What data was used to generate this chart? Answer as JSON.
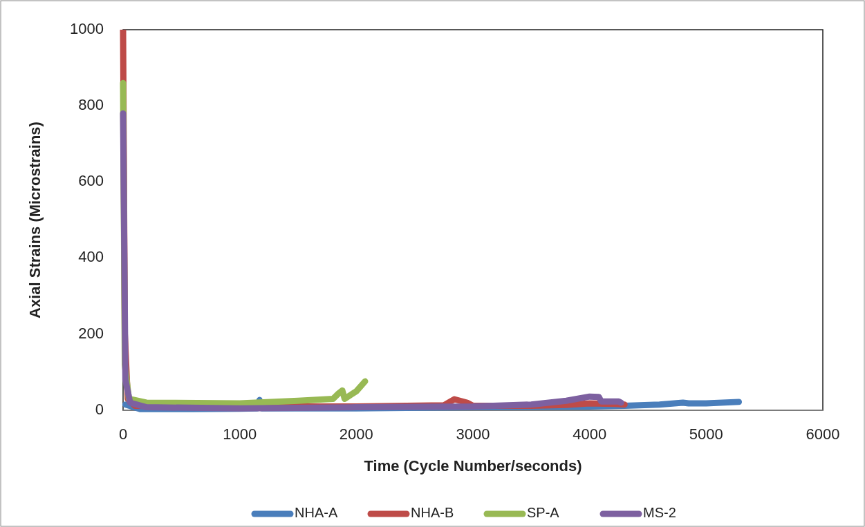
{
  "chart_data": {
    "type": "line",
    "xlabel": "Time (Cycle Number/seconds)",
    "ylabel": "Axial Strains (Microstrains)",
    "xlim": [
      0,
      6000
    ],
    "xticks": [
      0,
      1000,
      2000,
      3000,
      4000,
      5000,
      6000
    ],
    "ylim": [
      0,
      1000
    ],
    "yticks": [
      0,
      200,
      400,
      600,
      800,
      1000
    ],
    "grid": false,
    "legend": "bottom",
    "marker": "none",
    "line_style": "solid",
    "series": [
      {
        "name": "NHA-A",
        "color": "#4a7ebb",
        "x": [
          20,
          150,
          600,
          1000,
          1150,
          1170,
          1190,
          2000,
          3000,
          4000,
          4300,
          4600,
          4800,
          4850,
          5000,
          5280
        ],
        "values": [
          15,
          3,
          3,
          4,
          5,
          27,
          5,
          5,
          8,
          10,
          12,
          15,
          20,
          18,
          18,
          22
        ]
      },
      {
        "name": "NHA-B",
        "color": "#be4b48",
        "x": [
          0,
          15,
          40,
          100,
          500,
          1000,
          2000,
          2750,
          2840,
          2950,
          3000,
          3500,
          3800,
          4000,
          4200,
          4300
        ],
        "values": [
          1000,
          200,
          30,
          12,
          10,
          10,
          10,
          13,
          29,
          20,
          12,
          12,
          14,
          18,
          17,
          15
        ]
      },
      {
        "name": "SP-A",
        "color": "#98b954",
        "x": [
          0,
          15,
          50,
          200,
          1000,
          1500,
          1800,
          1850,
          1880,
          1900,
          2000,
          2075
        ],
        "values": [
          860,
          120,
          30,
          20,
          18,
          25,
          30,
          45,
          52,
          30,
          50,
          76
        ]
      },
      {
        "name": "MS-2",
        "color": "#7d60a0",
        "x": [
          0,
          20,
          60,
          200,
          1000,
          2000,
          3000,
          3500,
          3800,
          4000,
          4080,
          4100,
          4250,
          4270
        ],
        "values": [
          780,
          80,
          20,
          8,
          5,
          8,
          10,
          15,
          25,
          36,
          35,
          23,
          23,
          20
        ]
      }
    ]
  }
}
